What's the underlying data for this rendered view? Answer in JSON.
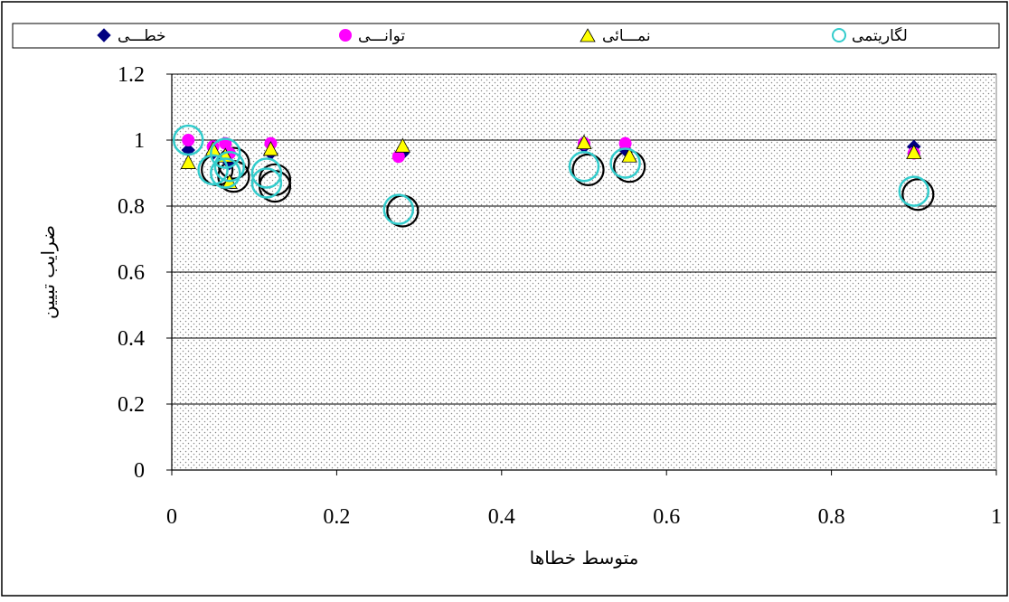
{
  "chart_data": {
    "type": "scatter",
    "xlabel": "متوسط خطاها",
    "ylabel": "ضرایب تبیین",
    "xlim": [
      0,
      1
    ],
    "ylim": [
      0,
      1.2
    ],
    "x_ticks": [
      "0",
      "0.2",
      "0.4",
      "0.6",
      "0.8",
      "1"
    ],
    "y_ticks": [
      "0",
      "0.2",
      "0.4",
      "0.6",
      "0.8",
      "1",
      "1.2"
    ],
    "grid": true,
    "legend_position": "top",
    "series": [
      {
        "name": "خطـــی",
        "marker": "diamond",
        "color": "#000080",
        "points": [
          [
            0.02,
            0.97
          ],
          [
            0.05,
            0.96
          ],
          [
            0.07,
            0.93
          ],
          [
            0.12,
            0.96
          ],
          [
            0.28,
            0.96
          ],
          [
            0.5,
            0.98
          ],
          [
            0.55,
            0.97
          ],
          [
            0.9,
            0.98
          ]
        ]
      },
      {
        "name": "توانـــی",
        "marker": "circle",
        "color": "#ff00ff",
        "points": [
          [
            0.02,
            1.0
          ],
          [
            0.05,
            0.98
          ],
          [
            0.065,
            0.99
          ],
          [
            0.07,
            0.96
          ],
          [
            0.12,
            0.99
          ],
          [
            0.275,
            0.95
          ],
          [
            0.5,
            0.99
          ],
          [
            0.55,
            0.99
          ],
          [
            0.9,
            0.96
          ]
        ]
      },
      {
        "name": "نمـــائی",
        "marker": "triangle",
        "color": "#ffff00",
        "points": [
          [
            0.02,
            0.93
          ],
          [
            0.05,
            0.97
          ],
          [
            0.065,
            0.95
          ],
          [
            0.07,
            0.87
          ],
          [
            0.12,
            0.97
          ],
          [
            0.28,
            0.98
          ],
          [
            0.5,
            0.99
          ],
          [
            0.555,
            0.95
          ],
          [
            0.9,
            0.96
          ]
        ]
      },
      {
        "name": "لگاریتمی",
        "marker": "open-circle",
        "color": "#33cccc",
        "points": [
          [
            0.02,
            1.0
          ],
          [
            0.05,
            0.91
          ],
          [
            0.065,
            0.96
          ],
          [
            0.07,
            0.92
          ],
          [
            0.065,
            0.9
          ],
          [
            0.115,
            0.9
          ],
          [
            0.115,
            0.87
          ],
          [
            0.275,
            0.79
          ],
          [
            0.5,
            0.92
          ],
          [
            0.55,
            0.93
          ],
          [
            0.9,
            0.845
          ]
        ]
      }
    ],
    "outline_points": [
      [
        0.055,
        0.91
      ],
      [
        0.075,
        0.93
      ],
      [
        0.075,
        0.89
      ],
      [
        0.125,
        0.88
      ],
      [
        0.125,
        0.86
      ],
      [
        0.28,
        0.785
      ],
      [
        0.505,
        0.91
      ],
      [
        0.555,
        0.92
      ],
      [
        0.905,
        0.835
      ]
    ]
  }
}
